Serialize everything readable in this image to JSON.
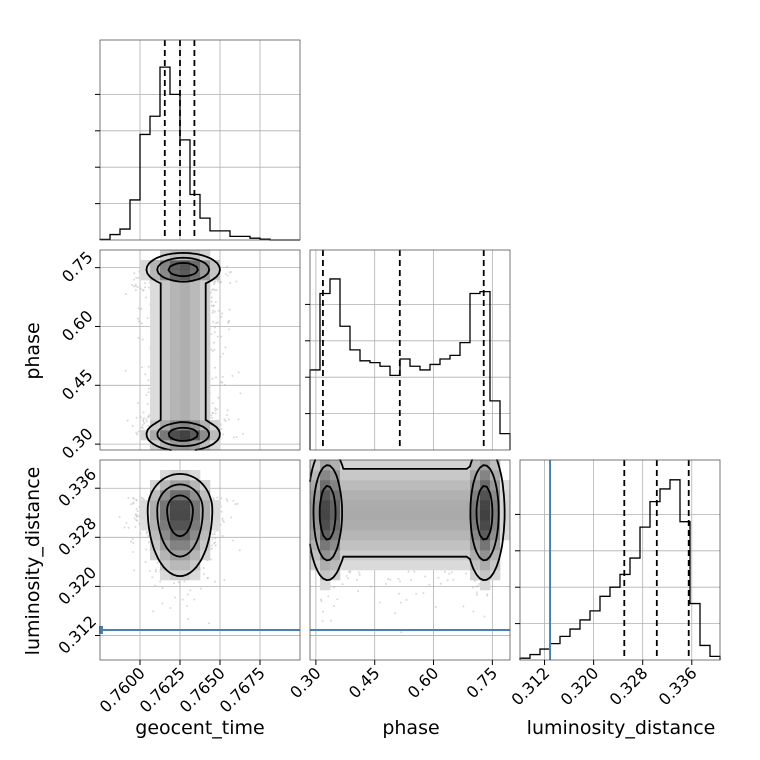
{
  "chart_data": {
    "type": "corner",
    "parameters": [
      "geocent_time",
      "phase",
      "luminosity_distance"
    ],
    "axis_labels": {
      "geocent_time": "geocent_time",
      "phase": "phase",
      "luminosity_distance": "luminosity_distance"
    },
    "ranges": {
      "geocent_time": [
        0.7575,
        0.77
      ],
      "phase": [
        0.285,
        0.795
      ],
      "luminosity_distance": [
        0.308,
        0.3406
      ]
    },
    "ticks": {
      "geocent_time": [
        0.76,
        0.7625,
        0.765,
        0.7675
      ],
      "phase": [
        0.3,
        0.45,
        0.6,
        0.75
      ],
      "luminosity_distance": [
        0.312,
        0.32,
        0.328,
        0.336
      ]
    },
    "tick_labels": {
      "geocent_time": [
        "0.7600",
        "0.7625",
        "0.7650",
        "0.7675"
      ],
      "phase": [
        "0.30",
        "0.45",
        "0.60",
        "0.75"
      ],
      "luminosity_distance": [
        "0.312",
        "0.320",
        "0.328",
        "0.336"
      ]
    },
    "truth": {
      "luminosity_distance": 0.3129
    },
    "truth_color": "#4682b4",
    "grid": true,
    "histograms": {
      "geocent_time": {
        "edges": [
          0.7575,
          0.758125,
          0.75875,
          0.759375,
          0.76,
          0.760625,
          0.76125,
          0.761875,
          0.7625,
          0.763125,
          0.76375,
          0.764375,
          0.765,
          0.765625,
          0.76625,
          0.766875,
          0.7675,
          0.768125,
          0.76875,
          0.769375,
          0.77
        ],
        "counts": [
          0.003,
          0.03,
          0.06,
          0.22,
          0.58,
          0.68,
          0.95,
          0.8,
          0.55,
          0.25,
          0.12,
          0.05,
          0.05,
          0.02,
          0.02,
          0.01,
          0.005,
          0,
          0,
          0
        ],
        "quantiles": [
          0.76155,
          0.7625,
          0.7634
        ]
      },
      "phase": {
        "edges": [
          0.285,
          0.3105,
          0.336,
          0.3615,
          0.387,
          0.4125,
          0.438,
          0.4635,
          0.489,
          0.5145,
          0.54,
          0.5655,
          0.591,
          0.6165,
          0.642,
          0.6675,
          0.693,
          0.7185,
          0.744,
          0.7695,
          0.795
        ],
        "counts": [
          0.44,
          0.86,
          0.94,
          0.68,
          0.55,
          0.49,
          0.48,
          0.46,
          0.41,
          0.5,
          0.46,
          0.44,
          0.47,
          0.5,
          0.52,
          0.59,
          0.86,
          0.87,
          0.27,
          0.09
        ],
        "quantiles": [
          0.318,
          0.514,
          0.728
        ]
      },
      "luminosity_distance": {
        "edges": [
          0.308,
          0.30963,
          0.31126,
          0.31289,
          0.31452,
          0.31615,
          0.31778,
          0.31941,
          0.32104,
          0.32267,
          0.3243,
          0.32593,
          0.32756,
          0.32919,
          0.33082,
          0.33245,
          0.33408,
          0.33571,
          0.33734,
          0.33897,
          0.3406
        ],
        "counts": [
          0.01,
          0.03,
          0.06,
          0.09,
          0.13,
          0.17,
          0.22,
          0.27,
          0.35,
          0.4,
          0.47,
          0.56,
          0.73,
          0.87,
          0.94,
          0.99,
          0.76,
          0.31,
          0.08,
          0.02
        ],
        "quantiles": [
          0.325,
          0.3303,
          0.3355
        ]
      }
    },
    "densities": [
      {
        "x": "geocent_time",
        "y": "phase",
        "x_center": 0.7627,
        "x_spread": 0.0012,
        "y_modes": [
          0.325,
          0.745
        ],
        "y_mode_weight": 0.6
      },
      {
        "x": "geocent_time",
        "y": "luminosity_distance",
        "x_center": 0.7625,
        "x_spread": 0.0011,
        "y_center": 0.3325,
        "y_spread": 0.005,
        "y_skew": "toward 0.3406"
      },
      {
        "x": "phase",
        "y": "luminosity_distance",
        "x_modes": [
          0.33,
          0.73
        ],
        "x_mode_weight": 0.5,
        "y_center": 0.332,
        "y_spread": 0.0055
      }
    ]
  }
}
